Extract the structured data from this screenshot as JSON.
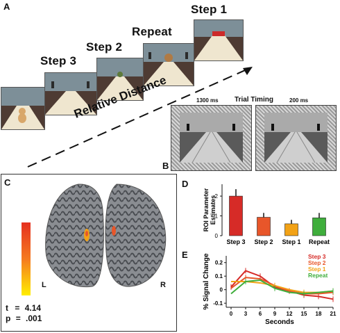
{
  "panelA": {
    "letter": "A",
    "steps": [
      {
        "label": "Step 3",
        "object": "baby-doll",
        "color": "#d8a76a"
      },
      {
        "label": "Step 2",
        "object": "small-toy",
        "color": "#5d7a3a"
      },
      {
        "label": "Repeat",
        "object": "teddy-bear",
        "color": "#b07a44"
      },
      {
        "label": "Step 1",
        "object": "red-box",
        "color": "#cc2a2a"
      }
    ],
    "axis_label": "Relative Distance"
  },
  "panelB": {
    "letter": "B",
    "title": "Trial Timing",
    "frames": [
      {
        "duration": "1300 ms"
      },
      {
        "duration": "200 ms"
      }
    ]
  },
  "panelC": {
    "letter": "C",
    "hemisphere_left": "L",
    "hemisphere_right": "R",
    "t_label": "t",
    "t_eq": "=",
    "t_value": "4.14",
    "p_label": "p",
    "p_eq": "=",
    "p_value": ".001",
    "colorbar": {
      "top": "#e53020",
      "bottom": "#ffee00"
    }
  },
  "chart_data": [
    {
      "type": "bar",
      "panel": "D",
      "ylabel": "ROI Parameter Estimates",
      "categories": [
        "Step 3",
        "Step 2",
        "Step 1",
        "Repeat"
      ],
      "values": [
        2.0,
        0.93,
        0.6,
        0.9
      ],
      "errors": [
        0.35,
        0.22,
        0.2,
        0.25
      ],
      "colors": [
        "#d62b27",
        "#e8562a",
        "#f2a216",
        "#3fae3c"
      ],
      "ylim": [
        0,
        2.6
      ],
      "yticks": [
        0,
        1,
        2
      ]
    },
    {
      "type": "line",
      "panel": "E",
      "xlabel": "Seconds",
      "ylabel": "% Signal Change",
      "x": [
        0,
        3,
        6,
        9,
        12,
        15,
        18,
        21
      ],
      "xlim": [
        -1,
        21
      ],
      "ylim": [
        -0.13,
        0.25
      ],
      "yticks": [
        -0.1,
        0,
        0.1,
        0.2
      ],
      "ytick_labels": [
        "-0.1",
        "0",
        "0.1",
        "0.2"
      ],
      "series": [
        {
          "name": "Step 3",
          "color": "#d62b27",
          "values": [
            0.02,
            0.14,
            0.1,
            0.02,
            -0.01,
            -0.04,
            -0.05,
            -0.07
          ]
        },
        {
          "name": "Step 2",
          "color": "#e8562a",
          "values": [
            0.01,
            0.09,
            0.08,
            0.03,
            -0.01,
            -0.03,
            -0.03,
            -0.02
          ]
        },
        {
          "name": "Step 1",
          "color": "#f2a216",
          "values": [
            0.06,
            0.06,
            0.05,
            0.03,
            0.0,
            -0.02,
            -0.02,
            -0.01
          ]
        },
        {
          "name": "Repeat",
          "color": "#3fae3c",
          "values": [
            -0.03,
            0.06,
            0.07,
            0.01,
            -0.02,
            -0.03,
            -0.02,
            -0.01
          ]
        }
      ]
    }
  ]
}
